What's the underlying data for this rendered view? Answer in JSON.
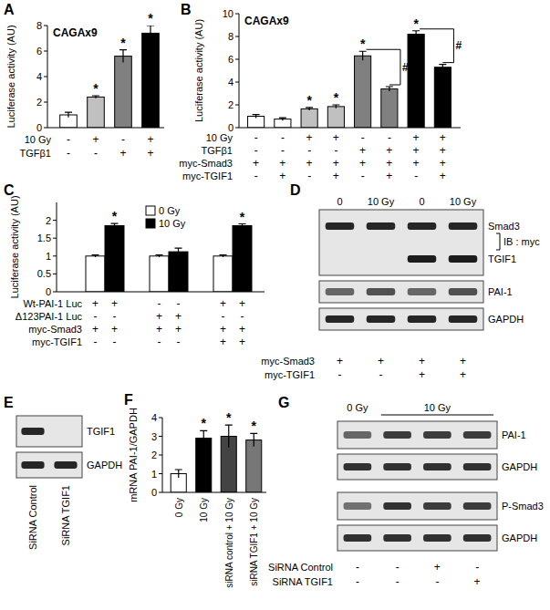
{
  "chart_data": [
    {
      "label": "A",
      "type": "bar",
      "title": "CAGAx9",
      "y_label": "Luciferase activity (AU)",
      "ylim": [
        0,
        8
      ],
      "yticks": [
        0,
        2,
        4,
        6,
        8
      ],
      "grid": false,
      "values": [
        1.0,
        2.4,
        5.6,
        7.4
      ],
      "errors": [
        0.2,
        0.1,
        0.5,
        0.6
      ],
      "colors": [
        "#ffffff",
        "#c0c0c0",
        "#808080",
        "#000000"
      ],
      "significance": [
        null,
        "*",
        "*",
        "*"
      ],
      "conditions": [
        {
          "name": "10 Gy",
          "values": [
            "-",
            "+",
            "-",
            "+"
          ]
        },
        {
          "name": "TGFβ1",
          "values": [
            "-",
            "-",
            "+",
            "+"
          ]
        }
      ]
    },
    {
      "label": "B",
      "type": "bar",
      "title": "CAGAx9",
      "y_label": "Luciferase activity (AU)",
      "ylim": [
        0,
        10
      ],
      "yticks": [
        0,
        2,
        4,
        6,
        8,
        10
      ],
      "grid": false,
      "values": [
        1.0,
        0.75,
        1.65,
        1.85,
        6.3,
        3.4,
        8.2,
        5.3
      ],
      "errors": [
        0.15,
        0.12,
        0.12,
        0.15,
        0.4,
        0.2,
        0.3,
        0.25
      ],
      "colors": [
        "#ffffff",
        "#ffffff",
        "#c0c0c0",
        "#c0c0c0",
        "#808080",
        "#808080",
        "#000000",
        "#000000"
      ],
      "significance": [
        null,
        null,
        "*",
        "*",
        "*",
        null,
        "*",
        null
      ],
      "brackets": [
        {
          "from": 4,
          "to": 5,
          "label": "#"
        },
        {
          "from": 6,
          "to": 7,
          "label": "#"
        }
      ],
      "conditions": [
        {
          "name": "10 Gy",
          "values": [
            "-",
            "-",
            "+",
            "+",
            "-",
            "-",
            "+",
            "+"
          ]
        },
        {
          "name": "TGFβ1",
          "values": [
            "-",
            "-",
            "-",
            "-",
            "+",
            "+",
            "+",
            "+"
          ]
        },
        {
          "name": "myc-Smad3",
          "values": [
            "+",
            "+",
            "+",
            "+",
            "+",
            "+",
            "+",
            "+"
          ]
        },
        {
          "name": "myc-TGIF1",
          "values": [
            "-",
            "+",
            "-",
            "+",
            "-",
            "+",
            "-",
            "+"
          ]
        }
      ]
    },
    {
      "label": "C",
      "type": "bar",
      "y_label": "Luciferase activity (AU)",
      "ylim": [
        0,
        2.5
      ],
      "yticks": [
        0,
        0.5,
        1,
        1.5,
        2
      ],
      "grid": false,
      "legend": "top-center",
      "series": [
        {
          "name": "0 Gy",
          "color": "#ffffff",
          "values": [
            1.0,
            1.0,
            1.0
          ],
          "errors": [
            0.03,
            0.03,
            0.03
          ],
          "significance": [
            null,
            null,
            null
          ]
        },
        {
          "name": "10 Gy",
          "color": "#000000",
          "values": [
            1.85,
            1.12,
            1.85
          ],
          "errors": [
            0.06,
            0.1,
            0.05
          ],
          "significance": [
            "*",
            null,
            "*"
          ]
        }
      ],
      "conditions": [
        {
          "name": "Wt-PAI-1 Luc",
          "values": [
            "+",
            "+",
            "-",
            "-",
            "+",
            "+"
          ]
        },
        {
          "name": "Δ123PAI-1 Luc",
          "values": [
            "-",
            "-",
            "+",
            "+",
            "-",
            "-"
          ]
        },
        {
          "name": "myc-Smad3",
          "values": [
            "+",
            "+",
            "+",
            "+",
            "+",
            "+"
          ]
        },
        {
          "name": "myc-TGIF1",
          "values": [
            "-",
            "-",
            "-",
            "-",
            "+",
            "+"
          ]
        }
      ]
    },
    {
      "label": "F",
      "type": "bar",
      "y_label": "mRNA PAI-1/GAPDH",
      "ylim": [
        0,
        4
      ],
      "yticks": [
        0,
        1,
        2,
        3,
        4
      ],
      "grid": false,
      "categories": [
        "0 Gy",
        "10 Gy",
        "siRNA control + 10 Gy",
        "siRNA TGIF1 + 10 Gy"
      ],
      "values": [
        1.0,
        2.9,
        3.0,
        2.8
      ],
      "errors": [
        0.22,
        0.4,
        0.6,
        0.35
      ],
      "colors": [
        "#ffffff",
        "#000000",
        "#444444",
        "#777777"
      ],
      "significance": [
        null,
        "*",
        "*",
        "*"
      ]
    }
  ],
  "blots": [
    {
      "label": "D",
      "header": [
        {
          "label": "0",
          "span": 1
        },
        {
          "label": "10 Gy",
          "span": 1
        },
        {
          "label": "0",
          "span": 1
        },
        {
          "label": "10 Gy",
          "span": 1
        }
      ],
      "boxes": [
        {
          "group_label": "IB : myc",
          "rows": [
            {
              "name": "Smad3",
              "bands": [
                0.9,
                0.9,
                0.9,
                0.9
              ]
            },
            {
              "name": "TGIF1",
              "bands": [
                0,
                0,
                0.95,
                0.95
              ]
            }
          ]
        },
        {
          "rows": [
            {
              "name": "PAI-1",
              "bands": [
                0.6,
                0.7,
                0.6,
                0.7
              ]
            }
          ]
        },
        {
          "rows": [
            {
              "name": "GAPDH",
              "bands": [
                0.9,
                0.9,
                0.9,
                0.9
              ]
            }
          ]
        }
      ],
      "conditions": [
        {
          "name": "myc-Smad3",
          "values": [
            "+",
            "+",
            "+",
            "+"
          ]
        },
        {
          "name": "myc-TGIF1",
          "values": [
            "-",
            "-",
            "+",
            "+"
          ]
        }
      ]
    },
    {
      "label": "E",
      "lane_labels": [
        "SiRNA Control",
        "SiRNA TGIF1"
      ],
      "boxes": [
        {
          "rows": [
            {
              "name": "TGIF1",
              "bands": [
                0.9,
                0
              ]
            }
          ]
        },
        {
          "rows": [
            {
              "name": "GAPDH",
              "bands": [
                0.9,
                0.9
              ]
            }
          ]
        }
      ]
    },
    {
      "label": "G",
      "header": [
        {
          "label": "0 Gy",
          "span": 1
        },
        {
          "label": "10 Gy",
          "span": 3
        }
      ],
      "boxes": [
        {
          "rows": [
            {
              "name": "PAI-1",
              "bands": [
                0.6,
                0.8,
                0.8,
                0.8
              ]
            }
          ]
        },
        {
          "rows": [
            {
              "name": "GAPDH",
              "bands": [
                0.85,
                0.85,
                0.85,
                0.85
              ]
            }
          ]
        },
        {
          "rows": [
            {
              "name": "P-Smad3",
              "bands": [
                0.55,
                0.85,
                0.8,
                0.8
              ]
            }
          ]
        },
        {
          "rows": [
            {
              "name": "GAPDH",
              "bands": [
                0.85,
                0.85,
                0.85,
                0.85
              ]
            }
          ]
        }
      ],
      "conditions": [
        {
          "name": "SiRNA Control",
          "values": [
            "-",
            "-",
            "+",
            "-"
          ]
        },
        {
          "name": "SiRNA TGIF1",
          "values": [
            "-",
            "-",
            "-",
            "+"
          ]
        }
      ]
    }
  ]
}
